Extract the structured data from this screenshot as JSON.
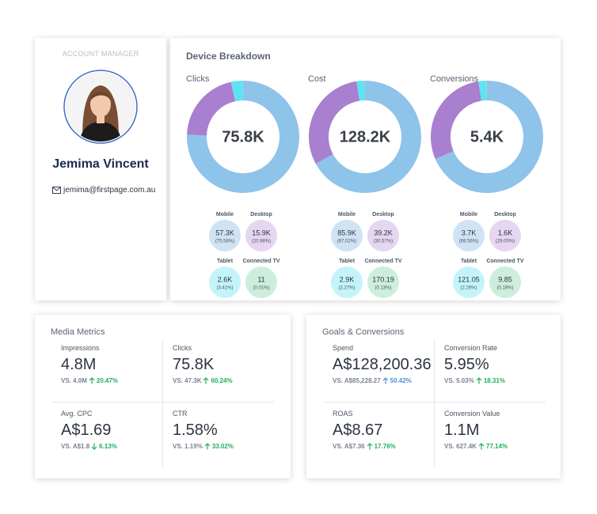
{
  "account_manager": {
    "heading": "ACCOUNT MANAGER",
    "name": "Jemima Vincent",
    "email": "jemima@firstpage.com.au"
  },
  "device_breakdown": {
    "title": "Device Breakdown",
    "segment_colors": [
      "#8ec3ea",
      "#a97fcf",
      "#5ee3f2",
      "#8fdcb3"
    ],
    "bubble_colors": [
      "#cfe3f5",
      "#e5d6f1",
      "#c4f4fa",
      "#cdeedd"
    ],
    "charts": [
      {
        "title": "Clicks",
        "total": "75.8K",
        "segments": [
          {
            "name": "Mobile",
            "value": "57.3K",
            "share": 75.58,
            "share_label": "(75.58%)"
          },
          {
            "name": "Desktop",
            "value": "15.9K",
            "share": 20.98,
            "share_label": "(20.98%)"
          },
          {
            "name": "Tablet",
            "value": "2.6K",
            "share": 3.41,
            "share_label": "(3.41%)"
          },
          {
            "name": "Connected TV",
            "value": "11",
            "share": 0.01,
            "share_label": "(0.01%)"
          }
        ]
      },
      {
        "title": "Cost",
        "total": "128.2K",
        "segments": [
          {
            "name": "Mobile",
            "value": "85.9K",
            "share": 67.02,
            "share_label": "(67.02%)"
          },
          {
            "name": "Desktop",
            "value": "39.2K",
            "share": 30.57,
            "share_label": "(30.57%)"
          },
          {
            "name": "Tablet",
            "value": "2.9K",
            "share": 2.27,
            "share_label": "(2.27%)"
          },
          {
            "name": "Connected TV",
            "value": "170.19",
            "share": 0.13,
            "share_label": "(0.13%)"
          }
        ]
      },
      {
        "title": "Conversions",
        "total": "5.4K",
        "segments": [
          {
            "name": "Mobile",
            "value": "3.7K",
            "share": 68.56,
            "share_label": "(68.56%)"
          },
          {
            "name": "Desktop",
            "value": "1.6K",
            "share": 29.0,
            "share_label": "(29.00%)"
          },
          {
            "name": "Tablet",
            "value": "121.05",
            "share": 2.26,
            "share_label": "(2.26%)"
          },
          {
            "name": "Connected TV",
            "value": "9.85",
            "share": 0.18,
            "share_label": "(0.18%)"
          }
        ]
      }
    ]
  },
  "panels": [
    {
      "title": "Media Metrics",
      "metrics": [
        {
          "label": "Impressions",
          "value": "4.8M",
          "comparison": "VS. 4.0M",
          "change": "20.47%",
          "direction": "up",
          "change_color": "#1fae5a"
        },
        {
          "label": "Clicks",
          "value": "75.8K",
          "comparison": "VS. 47.3K",
          "change": "60.24%",
          "direction": "up",
          "change_color": "#1fae5a"
        },
        {
          "label": "Avg. CPC",
          "value": "A$1.69",
          "comparison": "VS. A$1.8",
          "change": "6.13%",
          "direction": "down",
          "change_color": "#1fae5a"
        },
        {
          "label": "CTR",
          "value": "1.58%",
          "comparison": "VS. 1.19%",
          "change": "33.02%",
          "direction": "up",
          "change_color": "#1fae5a"
        }
      ]
    },
    {
      "title": "Goals & Conversions",
      "metrics": [
        {
          "label": "Spend",
          "value": "A$128,200.36",
          "comparison": "VS. A$85,228.27",
          "change": "50.42%",
          "direction": "up",
          "change_color": "#4a90d9"
        },
        {
          "label": "Conversion Rate",
          "value": "5.95%",
          "comparison": "VS. 5.03%",
          "change": "18.31%",
          "direction": "up",
          "change_color": "#1fae5a"
        },
        {
          "label": "ROAS",
          "value": "A$8.67",
          "comparison": "VS. A$7.36",
          "change": "17.76%",
          "direction": "up",
          "change_color": "#1fae5a"
        },
        {
          "label": "Conversion Value",
          "value": "1.1M",
          "comparison": "VS. 627.4K",
          "change": "77.14%",
          "direction": "up",
          "change_color": "#1fae5a"
        }
      ]
    }
  ]
}
